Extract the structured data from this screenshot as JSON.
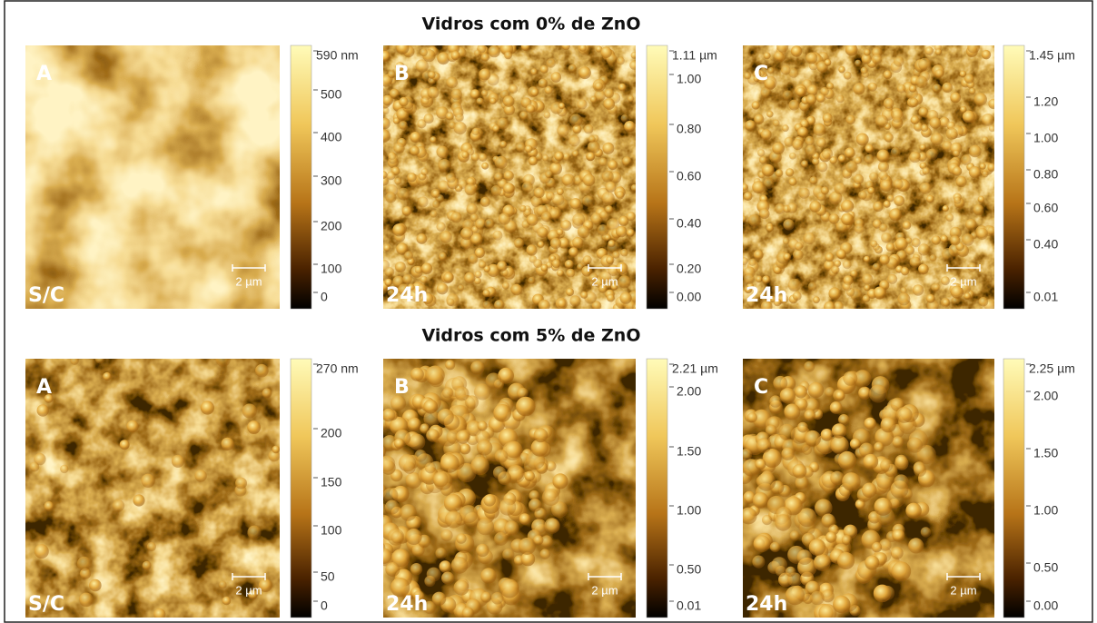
{
  "titles": [
    "Vidros com 0% de ZnO",
    "Vidros com 5% de ZnO"
  ],
  "rows": [
    {
      "panels": [
        {
          "letter": "A",
          "label": "S/C",
          "scale_bar": "2 µm",
          "colorbar": [
            "590 nm",
            "500",
            "400",
            "300",
            "200",
            "100",
            "0"
          ]
        },
        {
          "letter": "B",
          "label": "24h",
          "scale_bar": "2 µm",
          "colorbar": [
            "1.11 µm",
            "1.00",
            "0.80",
            "0.60",
            "0.40",
            "0.20",
            "0.00"
          ]
        },
        {
          "letter": "C",
          "label": "24h",
          "scale_bar": "2 µm",
          "colorbar": [
            "1.45 µm",
            "1.20",
            "1.00",
            "0.80",
            "0.60",
            "0.40",
            "0.01"
          ]
        }
      ]
    },
    {
      "panels": [
        {
          "letter": "A",
          "label": "S/C",
          "scale_bar": "2 µm",
          "colorbar": [
            "270 nm",
            "200",
            "150",
            "100",
            "50",
            "0"
          ]
        },
        {
          "letter": "B",
          "label": "24h",
          "scale_bar": "2 µm",
          "colorbar": [
            "2.21 µm",
            "2.00",
            "1.50",
            "1.00",
            "0.50",
            "0.01"
          ]
        },
        {
          "letter": "C",
          "label": "24h",
          "scale_bar": "2 µm",
          "colorbar": [
            "2.25 µm",
            "2.00",
            "1.50",
            "1.00",
            "0.50",
            "0.00"
          ]
        }
      ]
    }
  ]
}
